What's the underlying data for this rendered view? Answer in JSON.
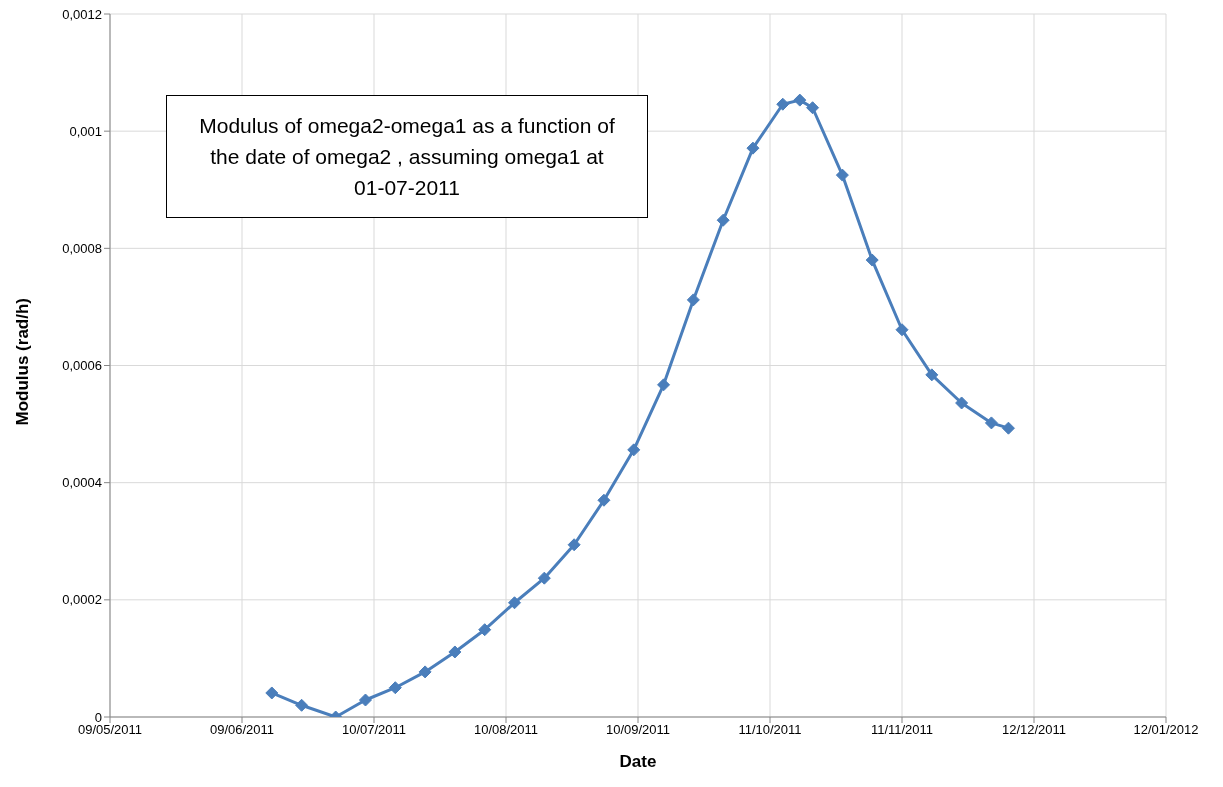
{
  "chart_data": {
    "type": "line",
    "xlabel": "Date",
    "ylabel": "Modulus (rad/h)",
    "annotations": [
      "Modulus of omega2-omega1 as a function of the date of omega2 , assuming omega1 at 01-07-2011"
    ],
    "x": [
      "2011-06-16",
      "2011-06-23",
      "2011-07-01",
      "2011-07-08",
      "2011-07-15",
      "2011-07-22",
      "2011-07-29",
      "2011-08-05",
      "2011-08-12",
      "2011-08-19",
      "2011-08-26",
      "2011-09-02",
      "2011-09-09",
      "2011-09-16",
      "2011-09-23",
      "2011-09-30",
      "2011-10-07",
      "2011-10-14",
      "2011-10-18",
      "2011-10-21",
      "2011-10-28",
      "2011-11-04",
      "2011-11-11",
      "2011-11-18",
      "2011-11-25",
      "2011-12-02",
      "2011-12-06"
    ],
    "series": [
      {
        "color": "#4a7ebb",
        "values": [
          4.1e-05,
          2e-05,
          0,
          2.9e-05,
          5e-05,
          7.7e-05,
          0.000111,
          0.000149,
          0.000195,
          0.000237,
          0.000294,
          0.00037,
          0.000456,
          0.000567,
          0.000712,
          0.000848,
          0.000971,
          0.001046,
          0.001053,
          0.00104,
          0.000925,
          0.00078,
          0.000661,
          0.000584,
          0.000536,
          0.000502,
          0.000493
        ]
      }
    ],
    "xlim": [
      "2011-05-09",
      "2012-01-12"
    ],
    "xticks": [
      {
        "value": "2011-05-09",
        "label": "09/05/2011"
      },
      {
        "value": "2011-06-09",
        "label": "09/06/2011"
      },
      {
        "value": "2011-07-10",
        "label": "10/07/2011"
      },
      {
        "value": "2011-08-10",
        "label": "10/08/2011"
      },
      {
        "value": "2011-09-10",
        "label": "10/09/2011"
      },
      {
        "value": "2011-10-11",
        "label": "11/10/2011"
      },
      {
        "value": "2011-11-11",
        "label": "11/11/2011"
      },
      {
        "value": "2011-12-12",
        "label": "12/12/2011"
      },
      {
        "value": "2012-01-12",
        "label": "12/01/2012"
      }
    ],
    "ylim": [
      0,
      0.0012
    ],
    "yticks": [
      0,
      {
        "value": 0.0002,
        "label": "0,0002"
      },
      {
        "value": 0.0004,
        "label": "0,0004"
      },
      {
        "value": 0.0006,
        "label": "0,0006"
      },
      {
        "value": 0.0008,
        "label": "0,0008"
      },
      {
        "value": 0.001,
        "label": "0,001"
      },
      {
        "value": 0.0012,
        "label": "0,0012"
      }
    ],
    "grid": true,
    "marker": "diamond",
    "line_style": "solid",
    "legend": false
  }
}
